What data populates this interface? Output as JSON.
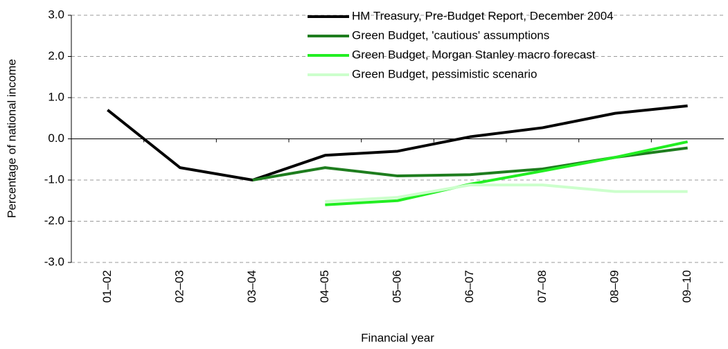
{
  "chart_data": {
    "type": "line",
    "x_label": "Financial year",
    "y_label": "Percentage of national income",
    "categories": [
      "01–02",
      "02–03",
      "03–04",
      "04–05",
      "05–06",
      "06–07",
      "07–08",
      "08–09",
      "09–10"
    ],
    "series": [
      {
        "name": "HM Treasury, Pre-Budget Report, December 2004",
        "color": "#000000",
        "values": [
          0.7,
          -0.7,
          -1.0,
          -0.4,
          -0.3,
          0.05,
          0.27,
          0.62,
          0.8
        ]
      },
      {
        "name": "Green Budget, 'cautious' assumptions",
        "color": "#1e7d1e",
        "values": [
          null,
          null,
          -1.0,
          -0.7,
          -0.9,
          -0.87,
          -0.73,
          -0.45,
          -0.22
        ]
      },
      {
        "name": "Green Budget, Morgan Stanley macro forecast",
        "color": "#22ee22",
        "values": [
          null,
          null,
          null,
          -1.6,
          -1.5,
          -1.1,
          -0.78,
          -0.45,
          -0.07
        ]
      },
      {
        "name": "Green Budget, pessimistic scenario",
        "color": "#ccffcc",
        "values": [
          null,
          null,
          null,
          -1.52,
          -1.42,
          -1.12,
          -1.12,
          -1.28,
          -1.28
        ]
      }
    ],
    "ylim": [
      -3,
      3
    ],
    "yticks": [
      {
        "value": -3,
        "label": "-3.0"
      },
      {
        "value": -2,
        "label": "-2.0"
      },
      {
        "value": -1,
        "label": "-1.0"
      },
      {
        "value": 0,
        "label": "0.0"
      },
      {
        "value": 1,
        "label": "1.0"
      },
      {
        "value": 2,
        "label": "2.0"
      },
      {
        "value": 3,
        "label": "3.0"
      }
    ],
    "grid": true,
    "legend": "upper right"
  }
}
